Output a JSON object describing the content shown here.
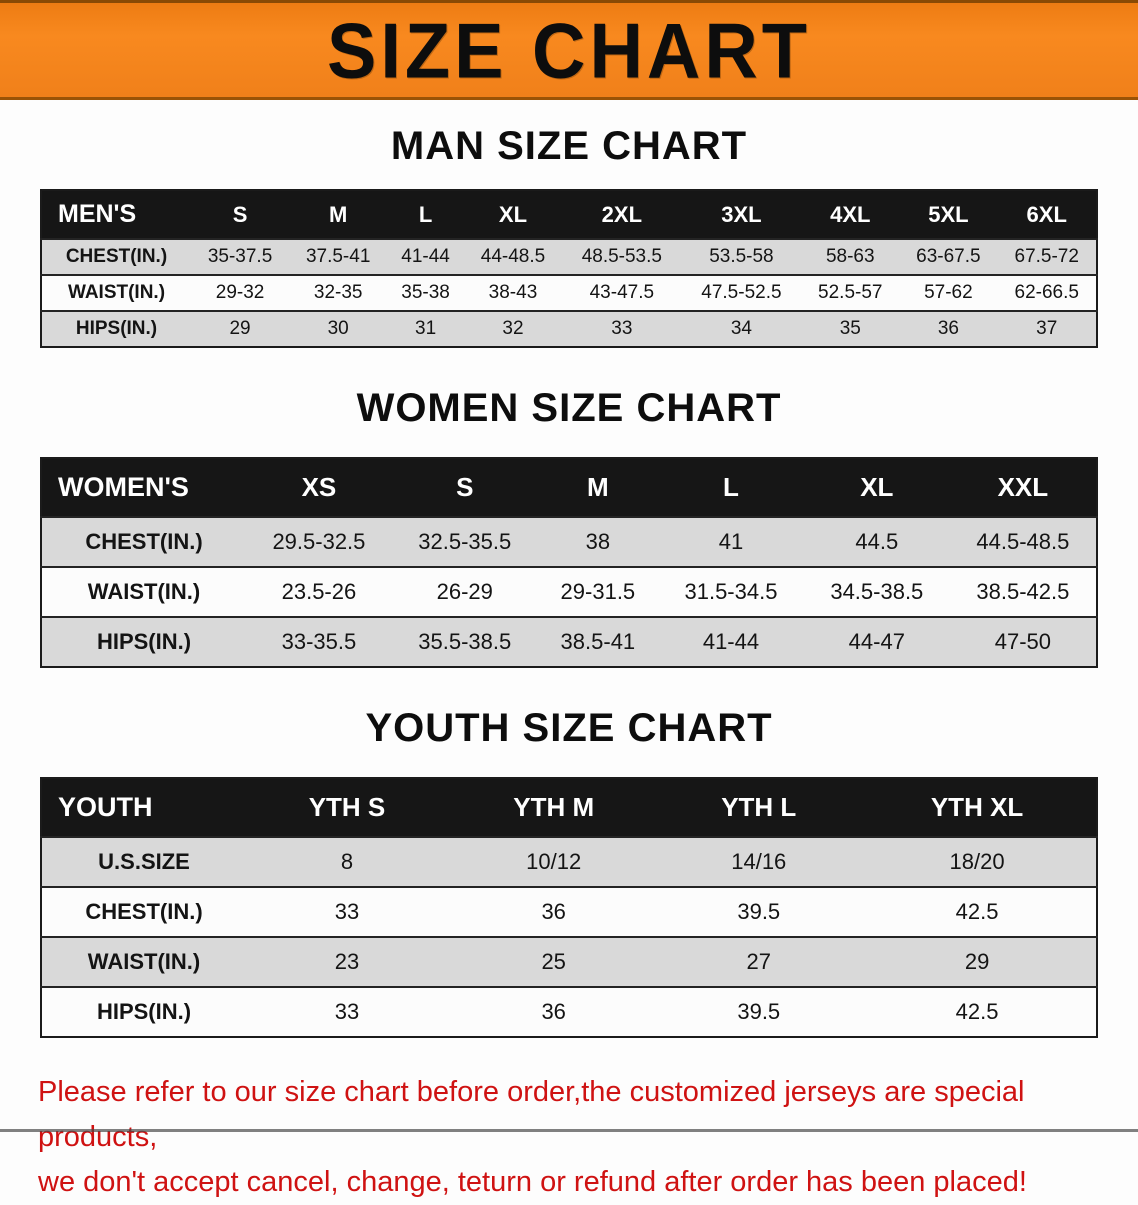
{
  "banner": {
    "title": "SIZE CHART",
    "background_color": "#f0801a",
    "text_color": "#0d0d0d"
  },
  "colors": {
    "banner_orange": "#f0801a",
    "table_header_black": "#161616",
    "row_gray": "#d9d9d9",
    "disclaimer_red": "#cf1212"
  },
  "sections": [
    {
      "heading": "MAN SIZE CHART",
      "table": {
        "header": [
          "MEN'S",
          "S",
          "M",
          "L",
          "XL",
          "2XL",
          "3XL",
          "4XL",
          "5XL",
          "6XL"
        ],
        "rows": [
          [
            "CHEST(IN.)",
            "35-37.5",
            "37.5-41",
            "41-44",
            "44-48.5",
            "48.5-53.5",
            "53.5-58",
            "58-63",
            "63-67.5",
            "67.5-72"
          ],
          [
            "WAIST(IN.)",
            "29-32",
            "32-35",
            "35-38",
            "38-43",
            "43-47.5",
            "47.5-52.5",
            "52.5-57",
            "57-62",
            "62-66.5"
          ],
          [
            "HIPS(IN.)",
            "29",
            "30",
            "31",
            "32",
            "33",
            "34",
            "35",
            "36",
            "37"
          ]
        ]
      }
    },
    {
      "heading": "WOMEN SIZE CHART",
      "table": {
        "header": [
          "WOMEN'S",
          "XS",
          "S",
          "M",
          "L",
          "XL",
          "XXL"
        ],
        "rows": [
          [
            "CHEST(IN.)",
            "29.5-32.5",
            "32.5-35.5",
            "38",
            "41",
            "44.5",
            "44.5-48.5"
          ],
          [
            "WAIST(IN.)",
            "23.5-26",
            "26-29",
            "29-31.5",
            "31.5-34.5",
            "34.5-38.5",
            "38.5-42.5"
          ],
          [
            "HIPS(IN.)",
            "33-35.5",
            "35.5-38.5",
            "38.5-41",
            "41-44",
            "44-47",
            "47-50"
          ]
        ]
      }
    },
    {
      "heading": "YOUTH SIZE CHART",
      "table": {
        "header": [
          "YOUTH",
          "YTH S",
          "YTH M",
          "YTH L",
          "YTH XL"
        ],
        "rows": [
          [
            "U.S.SIZE",
            "8",
            "10/12",
            "14/16",
            "18/20"
          ],
          [
            "CHEST(IN.)",
            "33",
            "36",
            "39.5",
            "42.5"
          ],
          [
            "WAIST(IN.)",
            "23",
            "25",
            "27",
            "29"
          ],
          [
            "HIPS(IN.)",
            "33",
            "36",
            "39.5",
            "42.5"
          ]
        ]
      }
    }
  ],
  "disclaimer": {
    "line1": "Please refer to our size chart before order,the customized jerseys are special products,",
    "line2": "we don't accept cancel, change, teturn or refund after order has been placed!"
  }
}
